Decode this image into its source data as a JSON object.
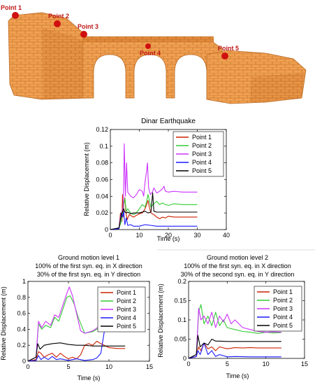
{
  "model_labels": [
    {
      "text": "Point 1"
    },
    {
      "text": "Point 2"
    },
    {
      "text": "Point 3"
    },
    {
      "text": "Point 4"
    },
    {
      "text": "Point 5"
    }
  ],
  "colors": {
    "point1": "#cc2200",
    "point2": "#33cc33",
    "point3": "#cc33ff",
    "point4": "#1a1aff",
    "point5": "#000000",
    "brick": "#f0a050",
    "brick_edge": "#b86a25",
    "marker": "#d01010",
    "label": "#c01818"
  },
  "chart_data": [
    {
      "type": "line",
      "title": "Dinar Earthquake",
      "subtitle": "",
      "xlabel": "Time (s)",
      "ylabel": "Relative Displacement (m)",
      "xlim": [
        0,
        40
      ],
      "ylim": [
        0,
        0.12
      ],
      "xticks": [
        0,
        10,
        20,
        30,
        40
      ],
      "yticks": [
        0,
        0.02,
        0.04,
        0.06,
        0.08,
        0.1,
        0.12
      ],
      "xtick_labels": [
        "0",
        "10",
        "20",
        "30",
        "40"
      ],
      "ytick_labels": [
        "0",
        "0.02",
        "0.04",
        "0.06",
        "0.08",
        "0.1",
        "0.12"
      ],
      "legend": "top-right",
      "series": [
        {
          "name": "Point 1",
          "x": [
            0,
            3,
            3.5,
            4,
            4.2,
            4.4,
            4.6,
            5,
            5.4,
            5.8,
            6.5,
            8,
            9,
            10,
            11,
            12,
            12.5,
            13,
            13.5,
            14,
            15,
            16,
            17,
            18,
            19,
            20,
            22,
            25,
            30
          ],
          "y": [
            0,
            0.002,
            0.02,
            0.01,
            0.042,
            0.015,
            0.03,
            0.038,
            0.02,
            0.012,
            0.018,
            0.015,
            0.017,
            0.019,
            0.02,
            0.025,
            0.03,
            0.035,
            0.026,
            0.02,
            0.018,
            0.015,
            0.013,
            0.015,
            0.014,
            0.016,
            0.015,
            0.015,
            0.015
          ]
        },
        {
          "name": "Point 2",
          "x": [
            0,
            3,
            3.8,
            4.2,
            4.6,
            5,
            5.5,
            6,
            7,
            8,
            9,
            10,
            11,
            12,
            12.5,
            13,
            14,
            15,
            16,
            17,
            18,
            19,
            20,
            22,
            25,
            30
          ],
          "y": [
            0,
            0.002,
            0.01,
            0.022,
            0.03,
            0.037,
            0.022,
            0.025,
            0.02,
            0.018,
            0.02,
            0.025,
            0.03,
            0.027,
            0.034,
            0.042,
            0.027,
            0.031,
            0.034,
            0.03,
            0.032,
            0.03,
            0.029,
            0.031,
            0.03,
            0.03
          ]
        },
        {
          "name": "Point 3",
          "x": [
            0,
            3,
            3.5,
            4,
            4.5,
            4.8,
            5.2,
            5.6,
            6,
            7,
            8,
            9,
            10,
            11,
            11.5,
            12,
            12.5,
            12.8,
            13.2,
            13.8,
            14.5,
            15,
            16,
            17,
            18,
            18.5,
            19,
            20,
            22,
            25,
            30
          ],
          "y": [
            0,
            0.002,
            0.015,
            0.02,
            0.03,
            0.103,
            0.04,
            0.08,
            0.045,
            0.04,
            0.038,
            0.042,
            0.048,
            0.046,
            0.04,
            0.058,
            0.07,
            0.08,
            0.05,
            0.042,
            0.045,
            0.05,
            0.044,
            0.046,
            0.049,
            0.052,
            0.046,
            0.045,
            0.046,
            0.045,
            0.045
          ]
        },
        {
          "name": "Point 4",
          "x": [
            0,
            3,
            3.8,
            4.2,
            4.6,
            5,
            5.5,
            6,
            7,
            8,
            10,
            12,
            14,
            16,
            18,
            20,
            22,
            25,
            30
          ],
          "y": [
            0,
            0.001,
            0.02,
            0.015,
            0.022,
            0.006,
            0.014,
            0.005,
            0.006,
            0.004,
            0.004,
            0.006,
            0.005,
            0.004,
            0.004,
            0.004,
            0.004,
            0.004,
            0.004
          ]
        },
        {
          "name": "Point 5",
          "x": [
            0,
            3,
            3.8,
            4.2,
            4.6,
            5,
            5.5,
            6,
            7,
            8,
            10,
            12,
            13,
            14,
            14.6,
            15,
            16,
            18,
            20,
            22,
            25,
            30
          ],
          "y": [
            0,
            0.002,
            0.018,
            0.022,
            0.025,
            0.021,
            0.02,
            0.021,
            0.019,
            0.02,
            0.02,
            0.022,
            0.02,
            0.021,
            0.044,
            0.022,
            0.021,
            0.021,
            0.021,
            0.021,
            0.021,
            0.021
          ]
        }
      ]
    },
    {
      "type": "line",
      "title": "Ground motion level 1",
      "subtitle": "100% of the first syn. eq. in X direction",
      "subtitle2": "30% of the first syn. eq. in Y direction",
      "xlabel": "Time (s)",
      "ylabel": "Relative Displacement (m)",
      "xlim": [
        0,
        15
      ],
      "ylim": [
        0,
        1
      ],
      "xticks": [
        0,
        5,
        10,
        15
      ],
      "yticks": [
        0,
        0.2,
        0.4,
        0.6,
        0.8,
        1
      ],
      "xtick_labels": [
        "0",
        "5",
        "10",
        "15"
      ],
      "ytick_labels": [
        "0",
        "0.2",
        "0.4",
        "0.6",
        "0.8",
        "1"
      ],
      "legend": "right",
      "series": [
        {
          "name": "Point 1",
          "x": [
            0,
            1,
            1.3,
            1.6,
            2,
            2.5,
            3,
            3.5,
            4,
            4.5,
            5,
            5.5,
            6,
            6.5,
            7,
            7.5,
            8,
            8.5,
            9,
            10,
            11,
            12
          ],
          "y": [
            0,
            0.02,
            0.12,
            0.1,
            0.05,
            0.08,
            0.1,
            0.05,
            0.1,
            0.06,
            0.03,
            0.05,
            0.03,
            0.08,
            0.2,
            0.22,
            0.2,
            0.25,
            0.22,
            0.17,
            0.16,
            0.16
          ]
        },
        {
          "name": "Point 2",
          "x": [
            0,
            1,
            1.3,
            1.7,
            2.2,
            2.8,
            3.3,
            3.8,
            4.3,
            4.8,
            5.2,
            5.7,
            6.2,
            7,
            8,
            9,
            9.5,
            10,
            10.5,
            11,
            11.5,
            12
          ],
          "y": [
            0,
            0.05,
            0.47,
            0.4,
            0.45,
            0.42,
            0.55,
            0.5,
            0.65,
            0.8,
            0.82,
            0.72,
            0.55,
            0.35,
            0.37,
            0.43,
            0.5,
            0.52,
            0.48,
            0.5,
            0.47,
            0.46
          ]
        },
        {
          "name": "Point 3",
          "x": [
            0,
            1,
            1.3,
            1.7,
            2.2,
            2.8,
            3.3,
            3.8,
            4.3,
            4.8,
            5.1,
            5.5,
            6,
            6.5,
            7,
            8,
            9,
            9.5,
            10,
            10.5,
            11,
            11.5,
            12
          ],
          "y": [
            0,
            0.05,
            0.5,
            0.42,
            0.5,
            0.45,
            0.58,
            0.55,
            0.7,
            0.85,
            0.93,
            0.82,
            0.6,
            0.38,
            0.35,
            0.38,
            0.45,
            0.55,
            0.5,
            0.45,
            0.48,
            0.45,
            0.47
          ]
        },
        {
          "name": "Point 4",
          "x": [
            0,
            1,
            1.3,
            1.6,
            2,
            2.5,
            3,
            3.5,
            4,
            5,
            6,
            7,
            8,
            8.5,
            9,
            9.5,
            10,
            10.5,
            11,
            12
          ],
          "y": [
            0,
            0.01,
            0.07,
            0.02,
            0.05,
            0.02,
            0.06,
            0.02,
            0.03,
            0.01,
            0.03,
            0.01,
            0.02,
            0.04,
            0.1,
            0.42,
            0.53,
            0.46,
            0.48,
            0.47
          ]
        },
        {
          "name": "Point 5",
          "x": [
            0,
            1,
            1.2,
            1.5,
            2,
            2.5,
            3,
            4,
            5,
            6,
            7,
            8,
            9,
            10,
            11,
            12
          ],
          "y": [
            0,
            0.05,
            0.22,
            0.15,
            0.2,
            0.21,
            0.22,
            0.23,
            0.21,
            0.2,
            0.2,
            0.19,
            0.19,
            0.19,
            0.19,
            0.19
          ]
        }
      ]
    },
    {
      "type": "line",
      "title": "Ground motion level 2",
      "subtitle": "100% of the first syn. eq. in X direction",
      "subtitle2": "30% of the second syn. eq. in Y direction",
      "xlabel": "Time (s)",
      "ylabel": "Relative Displacement (m)",
      "xlim": [
        0,
        15
      ],
      "ylim": [
        0,
        0.2
      ],
      "xticks": [
        0,
        5,
        10,
        15
      ],
      "yticks": [
        0,
        0.05,
        0.1,
        0.15,
        0.2
      ],
      "xtick_labels": [
        "0",
        "5",
        "10",
        "15"
      ],
      "ytick_labels": [
        "0",
        "0.05",
        "0.1",
        "0.15",
        "0.2"
      ],
      "legend": "right",
      "series": [
        {
          "name": "Point 1",
          "x": [
            0,
            1,
            1.3,
            1.6,
            2,
            2.5,
            3,
            3.5,
            4,
            5,
            6,
            7,
            8,
            9,
            10,
            12
          ],
          "y": [
            0,
            0.005,
            0.03,
            0.02,
            0.04,
            0.025,
            0.03,
            0.02,
            0.03,
            0.025,
            0.028,
            0.027,
            0.028,
            0.027,
            0.027,
            0.027
          ]
        },
        {
          "name": "Point 2",
          "x": [
            0,
            1,
            1.3,
            1.6,
            2,
            2.5,
            3,
            3.5,
            4,
            4.5,
            5,
            6,
            7,
            8,
            9,
            10,
            11,
            12
          ],
          "y": [
            0,
            0.01,
            0.12,
            0.14,
            0.09,
            0.11,
            0.085,
            0.12,
            0.085,
            0.1,
            0.08,
            0.075,
            0.07,
            0.068,
            0.065,
            0.068,
            0.066,
            0.067
          ]
        },
        {
          "name": "Point 3",
          "x": [
            0,
            1,
            1.3,
            1.6,
            2,
            2.5,
            3,
            3.5,
            4,
            4.5,
            5,
            5.5,
            6,
            7,
            8,
            9,
            10,
            11,
            12
          ],
          "y": [
            0,
            0.01,
            0.13,
            0.1,
            0.11,
            0.09,
            0.12,
            0.08,
            0.11,
            0.095,
            0.115,
            0.09,
            0.1,
            0.08,
            0.075,
            0.07,
            0.068,
            0.069,
            0.068
          ]
        },
        {
          "name": "Point 4",
          "x": [
            0,
            1,
            1.2,
            1.5,
            2,
            2.5,
            3,
            3.5,
            4,
            5,
            6,
            8,
            10,
            12
          ],
          "y": [
            0,
            0.005,
            0.02,
            0.01,
            0.04,
            0.01,
            0.02,
            0.005,
            0.01,
            0.004,
            0.005,
            0.004,
            0.004,
            0.004
          ]
        },
        {
          "name": "Point 5",
          "x": [
            0,
            1,
            1.2,
            1.5,
            2,
            2.5,
            3,
            3.5,
            4,
            5,
            6,
            8,
            10,
            12
          ],
          "y": [
            0,
            0.01,
            0.06,
            0.03,
            0.04,
            0.035,
            0.05,
            0.045,
            0.045,
            0.044,
            0.044,
            0.044,
            0.044,
            0.044
          ]
        }
      ]
    }
  ]
}
